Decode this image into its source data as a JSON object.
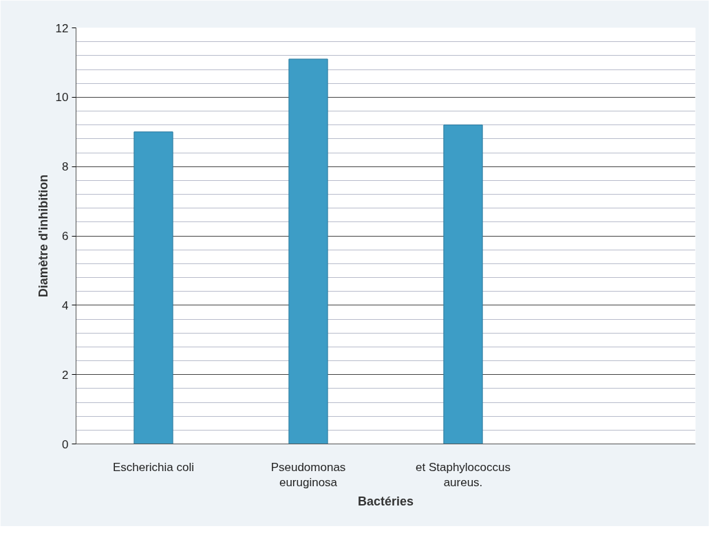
{
  "chart_data": {
    "type": "bar",
    "xlabel": "Bactéries",
    "ylabel": "Diamètre d'inhibition",
    "categories": [
      "Escherichia coli",
      "Pseudomonas euruginosa",
      "et Staphylococcus aureus.",
      null
    ],
    "values": [
      9.0,
      11.1,
      9.2,
      null
    ],
    "color": "#3d9dc6",
    "ylim": [
      0,
      12
    ],
    "yticks": [
      0,
      2,
      4,
      6,
      8,
      10,
      12
    ],
    "grid": "y"
  }
}
